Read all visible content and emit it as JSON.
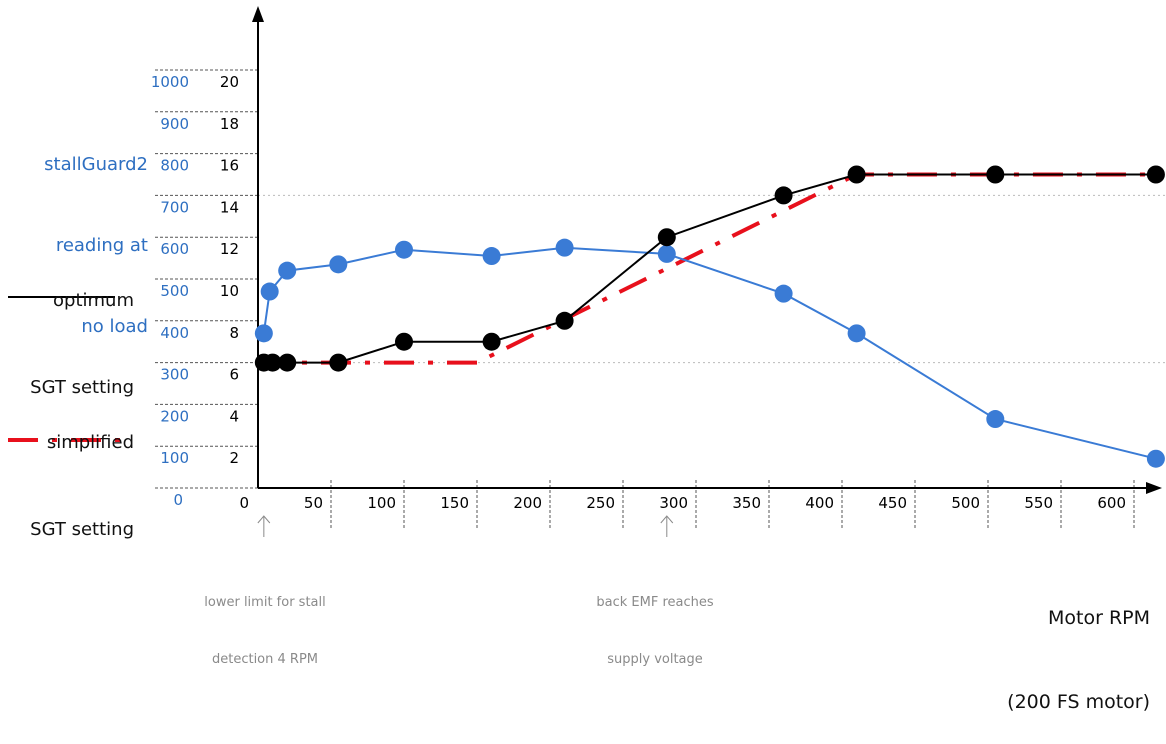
{
  "colors": {
    "blue": "#3a7bd5",
    "blue_text": "#2e6fc1",
    "black": "#000000",
    "red": "#e8101c",
    "grid": "#555555",
    "annotation": "#8a8a8a"
  },
  "legend": {
    "stallguard_lines": [
      "stallGuard2",
      "reading at",
      "no load"
    ],
    "optimum_lines": [
      "optimum",
      "SGT setting"
    ],
    "simplified_lines": [
      "simplified",
      "SGT setting"
    ]
  },
  "annotations": {
    "stall": [
      "lower limit for stall",
      "detection 4 RPM"
    ],
    "emf": [
      "back EMF reaches",
      "supply voltage"
    ]
  },
  "xaxis_title": [
    "Motor RPM",
    "(200 FS motor)"
  ],
  "chart_data": {
    "type": "line",
    "x_ticks": [
      0,
      50,
      100,
      150,
      200,
      250,
      300,
      350,
      400,
      450,
      500,
      550,
      600
    ],
    "xlim": [
      0,
      630
    ],
    "y_left_ticks": [
      0,
      100,
      200,
      300,
      400,
      500,
      600,
      700,
      800,
      900,
      1000
    ],
    "y_right_ticks": [
      2,
      4,
      6,
      8,
      10,
      12,
      14,
      16,
      18,
      20
    ],
    "ylim_stallguard": [
      0,
      1000
    ],
    "ylim_sgt": [
      0,
      20
    ],
    "xlabel": "Motor RPM (200 FS motor)",
    "series": [
      {
        "name": "stallGuard2 reading at no load",
        "axis": "left",
        "color": "#3a7bd5",
        "style": "solid",
        "markers": true,
        "points": [
          [
            4,
            370
          ],
          [
            8,
            470
          ],
          [
            20,
            520
          ],
          [
            55,
            535
          ],
          [
            100,
            570
          ],
          [
            160,
            555
          ],
          [
            210,
            575
          ],
          [
            280,
            560
          ],
          [
            360,
            465
          ],
          [
            410,
            370
          ],
          [
            505,
            165
          ],
          [
            615,
            70
          ]
        ]
      },
      {
        "name": "optimum SGT setting",
        "axis": "right",
        "color": "#000000",
        "style": "solid",
        "markers": true,
        "points": [
          [
            4,
            6
          ],
          [
            10,
            6
          ],
          [
            20,
            6
          ],
          [
            55,
            6
          ],
          [
            100,
            7
          ],
          [
            160,
            7
          ],
          [
            210,
            8
          ],
          [
            280,
            12
          ],
          [
            360,
            14
          ],
          [
            410,
            15
          ],
          [
            505,
            15
          ],
          [
            615,
            15
          ]
        ]
      },
      {
        "name": "simplified SGT setting",
        "axis": "right",
        "color": "#e8101c",
        "style": "dashdot",
        "markers": false,
        "points": [
          [
            0,
            6
          ],
          [
            150,
            6
          ],
          [
            410,
            15
          ],
          [
            615,
            15
          ]
        ]
      }
    ]
  }
}
